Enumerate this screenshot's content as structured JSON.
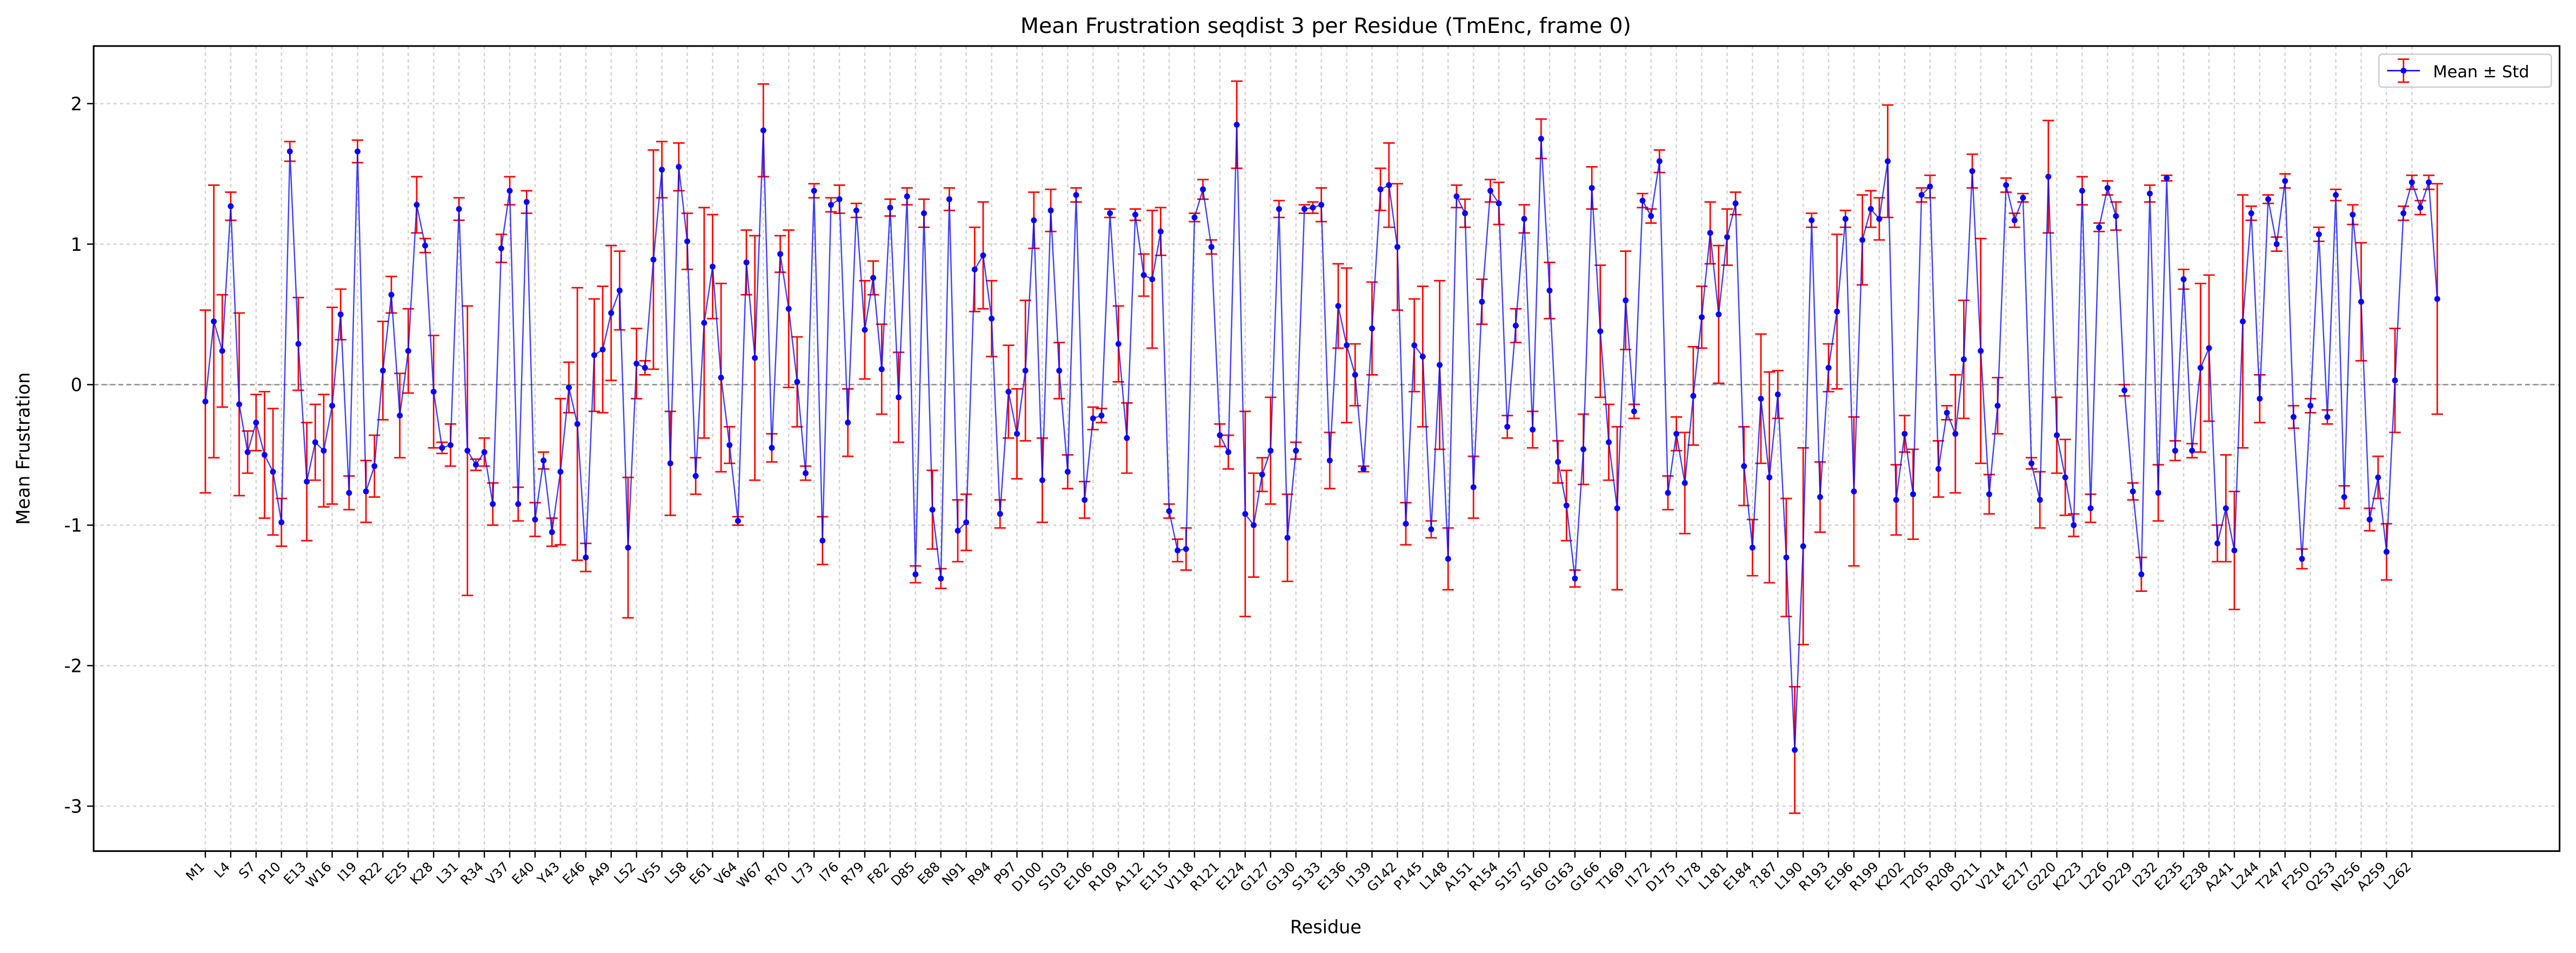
{
  "chart_data": {
    "type": "errorbar-line",
    "title": "Mean Frustration seqdist 3 per Residue (TmEnc, frame 0)",
    "x_label": "Residue",
    "y_label": "Mean Frustration",
    "ylim": [
      -3.32,
      2.41
    ],
    "yticks": [
      -3,
      -2,
      -1,
      0,
      1,
      2
    ],
    "grid": true,
    "reference_line": 0,
    "legend_position": "upper right",
    "categories": [
      "M1",
      null,
      null,
      "L4",
      null,
      null,
      "S7",
      null,
      null,
      "P10",
      null,
      null,
      "E13",
      null,
      null,
      "W16",
      null,
      null,
      "I19",
      null,
      null,
      "R22",
      null,
      null,
      "E25",
      null,
      null,
      "K28",
      null,
      null,
      "L31",
      null,
      null,
      "R34",
      null,
      null,
      "V37",
      null,
      null,
      "E40",
      null,
      null,
      "Y43",
      null,
      null,
      "E46",
      null,
      null,
      "A49",
      null,
      null,
      "L52",
      null,
      null,
      "V55",
      null,
      null,
      "L58",
      null,
      null,
      "E61",
      null,
      null,
      "V64",
      null,
      null,
      "W67",
      null,
      null,
      "R70",
      null,
      null,
      "L73",
      null,
      null,
      "I76",
      null,
      null,
      "R79",
      null,
      null,
      "F82",
      null,
      null,
      "D85",
      null,
      null,
      "E88",
      null,
      null,
      "N91",
      null,
      null,
      "R94",
      null,
      null,
      "P97",
      null,
      null,
      "D100",
      null,
      null,
      "S103",
      null,
      null,
      "E106",
      null,
      null,
      "R109",
      null,
      null,
      "A112",
      null,
      null,
      "E115",
      null,
      null,
      "V118",
      null,
      null,
      "R121",
      null,
      null,
      "E124",
      null,
      null,
      "G127",
      null,
      null,
      "G130",
      null,
      null,
      "S133",
      null,
      null,
      "E136",
      null,
      null,
      "I139",
      null,
      null,
      "G142",
      null,
      null,
      "P145",
      null,
      null,
      "L148",
      null,
      null,
      "A151",
      null,
      null,
      "R154",
      null,
      null,
      "S157",
      null,
      null,
      "S160",
      null,
      null,
      "G163",
      null,
      null,
      "G166",
      null,
      null,
      "T169",
      null,
      null,
      "I172",
      null,
      null,
      "D175",
      null,
      null,
      "I178",
      null,
      null,
      "L181",
      null,
      null,
      "E184",
      null,
      null,
      "?187",
      null,
      null,
      "L190",
      null,
      null,
      "R193",
      null,
      null,
      "E196",
      null,
      null,
      "R199",
      null,
      null,
      "K202",
      null,
      null,
      "T205",
      null,
      null,
      "R208",
      null,
      null,
      "D211",
      null,
      null,
      "V214",
      null,
      null,
      "E217",
      null,
      null,
      "G220",
      null,
      null,
      "K223",
      null,
      null,
      "L226",
      null,
      null,
      "D229",
      null,
      null,
      "I232",
      null,
      null,
      "E235",
      null,
      null,
      "E238",
      null,
      null,
      "A241",
      null,
      null,
      "L244",
      null,
      null,
      "T247",
      null,
      null,
      "F250",
      null,
      null,
      "Q253",
      null,
      null,
      "N256",
      null,
      null,
      "A259",
      null,
      null,
      "L262",
      null,
      null,
      null
    ],
    "series": [
      {
        "name": "Mean ± Std",
        "color": "#0000ff",
        "error_color": "#ff0000",
        "values": [
          -0.12,
          0.45,
          0.24,
          1.27,
          -0.14,
          -0.48,
          -0.27,
          -0.5,
          -0.62,
          -0.98,
          1.66,
          0.29,
          -0.69,
          -0.41,
          -0.47,
          -0.15,
          0.5,
          -0.77,
          1.66,
          -0.76,
          -0.58,
          0.1,
          0.64,
          -0.22,
          0.24,
          1.28,
          0.99,
          -0.05,
          -0.45,
          -0.43,
          1.25,
          -0.47,
          -0.57,
          -0.48,
          -0.85,
          0.97,
          1.38,
          -0.85,
          1.3,
          -0.96,
          -0.54,
          -1.05,
          -0.62,
          -0.02,
          -0.28,
          -1.23,
          0.21,
          0.25,
          0.51,
          0.67,
          -1.16,
          0.15,
          0.12,
          0.89,
          1.53,
          -0.56,
          1.55,
          1.02,
          -0.65,
          0.44,
          0.84,
          0.05,
          -0.43,
          -0.97,
          0.87,
          0.19,
          1.81,
          -0.45,
          0.93,
          0.54,
          0.02,
          -0.63,
          1.38,
          -1.11,
          1.28,
          1.32,
          -0.27,
          1.24,
          0.39,
          0.76,
          0.11,
          1.26,
          -0.09,
          1.34,
          -1.35,
          1.22,
          -0.89,
          -1.38,
          1.32,
          -1.04,
          -0.98,
          0.82,
          0.92,
          0.47,
          -0.92,
          -0.05,
          -0.35,
          0.1,
          1.17,
          -0.68,
          1.24,
          0.1,
          -0.62,
          1.35,
          -0.82,
          -0.24,
          -0.22,
          1.22,
          0.29,
          -0.38,
          1.21,
          0.78,
          0.75,
          1.09,
          -0.9,
          -1.18,
          -1.17,
          1.19,
          1.39,
          0.98,
          -0.36,
          -0.48,
          1.85,
          -0.92,
          -1.0,
          -0.64,
          -0.47,
          1.25,
          -1.09,
          -0.47,
          1.25,
          1.26,
          1.28,
          -0.54,
          0.56,
          0.28,
          0.07,
          -0.6,
          0.4,
          1.39,
          1.42,
          0.98,
          -0.99,
          0.28,
          0.2,
          -1.03,
          0.14,
          -1.24,
          1.34,
          1.22,
          -0.73,
          0.59,
          1.38,
          1.29,
          -0.3,
          0.42,
          1.18,
          -0.32,
          1.75,
          0.67,
          -0.55,
          -0.86,
          -1.38,
          -0.46,
          1.4,
          0.38,
          -0.41,
          -0.88,
          0.6,
          -0.19,
          1.31,
          1.2,
          1.59,
          -0.77,
          -0.35,
          -0.7,
          -0.08,
          0.48,
          1.08,
          0.5,
          1.05,
          1.29,
          -0.58,
          -1.16,
          -0.1,
          -0.66,
          -0.07,
          -1.23,
          -2.6,
          -1.15,
          1.17,
          -0.8,
          0.12,
          0.52,
          1.18,
          -0.76,
          1.03,
          1.25,
          1.18,
          1.59,
          -0.82,
          -0.35,
          -0.78,
          1.35,
          1.41,
          -0.6,
          -0.2,
          -0.35,
          0.18,
          1.52,
          0.24,
          -0.78,
          -0.15,
          1.42,
          1.17,
          1.33,
          -0.56,
          -0.82,
          1.48,
          -0.36,
          -0.66,
          -1.0,
          1.38,
          -0.88,
          1.12,
          1.4,
          1.2,
          -0.04,
          -0.76,
          -1.35,
          1.36,
          -0.77,
          1.47,
          -0.47,
          0.75,
          -0.47,
          0.12,
          0.26,
          -1.13,
          -0.88,
          -1.18,
          0.45,
          1.22,
          -0.1,
          1.32,
          1.0,
          1.45,
          -0.23,
          -1.24,
          -0.15,
          1.07,
          -0.23,
          1.35,
          -0.8,
          1.21,
          0.59,
          -0.96,
          -0.66,
          -1.19,
          0.03,
          1.22,
          1.44,
          1.26,
          1.44,
          0.61
        ],
        "errors": [
          0.65,
          0.97,
          0.4,
          0.1,
          0.65,
          0.15,
          0.2,
          0.45,
          0.45,
          0.17,
          0.07,
          0.33,
          0.42,
          0.27,
          0.4,
          0.7,
          0.18,
          0.12,
          0.08,
          0.22,
          0.22,
          0.35,
          0.13,
          0.3,
          0.3,
          0.2,
          0.05,
          0.4,
          0.04,
          0.15,
          0.08,
          1.03,
          0.04,
          0.1,
          0.15,
          0.1,
          0.1,
          0.12,
          0.08,
          0.12,
          0.06,
          0.1,
          0.52,
          0.18,
          0.97,
          0.1,
          0.4,
          0.45,
          0.48,
          0.28,
          0.5,
          0.25,
          0.05,
          0.78,
          0.2,
          0.37,
          0.17,
          0.2,
          0.13,
          0.82,
          0.37,
          0.67,
          0.13,
          0.03,
          0.23,
          0.87,
          0.33,
          0.1,
          0.13,
          0.56,
          0.32,
          0.05,
          0.05,
          0.17,
          0.05,
          0.1,
          0.24,
          0.05,
          0.35,
          0.12,
          0.32,
          0.06,
          0.32,
          0.06,
          0.06,
          0.1,
          0.28,
          0.07,
          0.08,
          0.22,
          0.2,
          0.3,
          0.38,
          0.27,
          0.1,
          0.33,
          0.32,
          0.5,
          0.2,
          0.3,
          0.15,
          0.2,
          0.12,
          0.05,
          0.13,
          0.08,
          0.05,
          0.03,
          0.27,
          0.25,
          0.04,
          0.15,
          0.49,
          0.17,
          0.05,
          0.08,
          0.15,
          0.03,
          0.07,
          0.05,
          0.08,
          0.12,
          0.31,
          0.73,
          0.37,
          0.12,
          0.38,
          0.06,
          0.31,
          0.06,
          0.03,
          0.04,
          0.12,
          0.2,
          0.3,
          0.55,
          0.22,
          0.02,
          0.33,
          0.15,
          0.3,
          0.45,
          0.15,
          0.33,
          0.5,
          0.06,
          0.6,
          0.22,
          0.08,
          0.1,
          0.22,
          0.16,
          0.08,
          0.15,
          0.08,
          0.12,
          0.1,
          0.13,
          0.14,
          0.2,
          0.15,
          0.25,
          0.06,
          0.25,
          0.15,
          0.47,
          0.27,
          0.58,
          0.35,
          0.05,
          0.05,
          0.05,
          0.08,
          0.12,
          0.12,
          0.36,
          0.35,
          0.22,
          0.22,
          0.49,
          0.2,
          0.08,
          0.28,
          0.2,
          0.46,
          0.75,
          0.17,
          0.42,
          0.45,
          0.7,
          0.05,
          0.25,
          0.17,
          0.55,
          0.06,
          0.53,
          0.32,
          0.13,
          0.15,
          0.4,
          0.25,
          0.13,
          0.32,
          0.05,
          0.08,
          0.2,
          0.05,
          0.42,
          0.42,
          0.12,
          0.8,
          0.14,
          0.2,
          0.05,
          0.05,
          0.03,
          0.04,
          0.2,
          0.4,
          0.27,
          0.27,
          0.08,
          0.1,
          0.1,
          0.03,
          0.05,
          0.1,
          0.04,
          0.06,
          0.12,
          0.06,
          0.2,
          0.02,
          0.07,
          0.07,
          0.05,
          0.6,
          0.52,
          0.13,
          0.38,
          0.42,
          0.9,
          0.05,
          0.17,
          0.03,
          0.05,
          0.05,
          0.08,
          0.07,
          0.05,
          0.05,
          0.05,
          0.04,
          0.08,
          0.07,
          0.42,
          0.08,
          0.15,
          0.2,
          0.37,
          0.05,
          0.05,
          0.05,
          0.05,
          0.82
        ]
      }
    ]
  }
}
